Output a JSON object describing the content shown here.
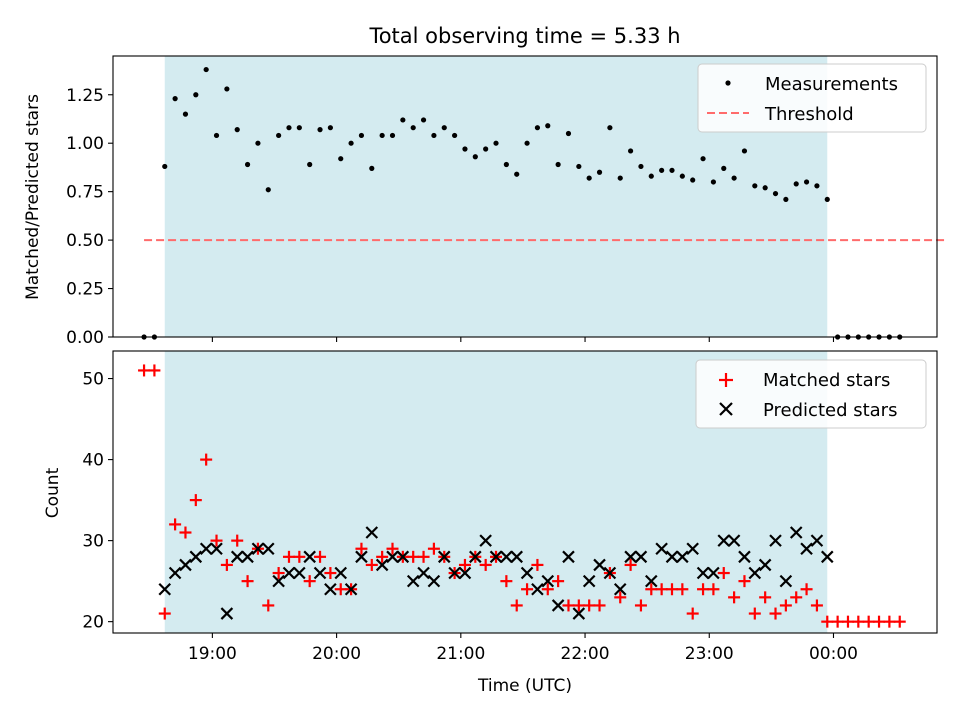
{
  "chart_data": [
    {
      "type": "scatter",
      "title": "Total observing time = 5.33 h",
      "xlabel": "",
      "ylabel": "Matched/Predicted stars",
      "xlim": [
        "18:12",
        "00:50"
      ],
      "ylim": [
        0,
        1.45
      ],
      "yticks": [
        0,
        0.25,
        0.5,
        0.75,
        1.0,
        1.25
      ],
      "ytick_labels": [
        "0.00",
        "0.25",
        "0.50",
        "0.75",
        "1.00",
        "1.25"
      ],
      "shaded_region": [
        "18:37",
        "23:57"
      ],
      "shade_color": "#d4ebf0",
      "legend_position": "top-right",
      "legend": [
        "Measurements",
        "Threshold"
      ],
      "threshold": {
        "name": "Threshold",
        "value": 0.5,
        "x_range": [
          "18:27",
          "00:55"
        ],
        "color": "#ff6b6b"
      },
      "series": [
        {
          "name": "Measurements",
          "marker": "dot",
          "color": "#000000",
          "x": [
            "18:27",
            "18:32",
            "18:37",
            "18:42",
            "18:47",
            "18:52",
            "18:57",
            "19:02",
            "19:07",
            "19:12",
            "19:17",
            "19:22",
            "19:27",
            "19:32",
            "19:37",
            "19:42",
            "19:47",
            "19:52",
            "19:57",
            "20:02",
            "20:07",
            "20:12",
            "20:17",
            "20:22",
            "20:27",
            "20:32",
            "20:37",
            "20:42",
            "20:47",
            "20:52",
            "20:57",
            "21:02",
            "21:07",
            "21:12",
            "21:17",
            "21:22",
            "21:27",
            "21:32",
            "21:37",
            "21:42",
            "21:47",
            "21:52",
            "21:57",
            "22:02",
            "22:07",
            "22:12",
            "22:17",
            "22:22",
            "22:27",
            "22:32",
            "22:37",
            "22:42",
            "22:47",
            "22:52",
            "22:57",
            "23:02",
            "23:07",
            "23:12",
            "23:17",
            "23:22",
            "23:27",
            "23:32",
            "23:37",
            "23:42",
            "23:47",
            "23:52",
            "23:57",
            "00:02",
            "00:07",
            "00:12",
            "00:17",
            "00:22",
            "00:27",
            "00:32"
          ],
          "y": [
            0.0,
            0.0,
            0.88,
            1.23,
            1.15,
            1.25,
            1.38,
            1.04,
            1.28,
            1.07,
            0.89,
            1.0,
            0.76,
            1.04,
            1.08,
            1.08,
            0.89,
            1.07,
            1.08,
            0.92,
            1.0,
            1.04,
            0.87,
            1.04,
            1.04,
            1.12,
            1.08,
            1.12,
            1.04,
            1.08,
            1.04,
            0.97,
            0.93,
            0.97,
            1.0,
            0.89,
            0.84,
            1.0,
            1.08,
            1.09,
            0.89,
            1.05,
            0.88,
            0.82,
            0.85,
            1.08,
            0.82,
            0.96,
            0.88,
            0.83,
            0.86,
            0.86,
            0.83,
            0.81,
            0.92,
            0.8,
            0.87,
            0.82,
            0.96,
            0.78,
            0.77,
            0.74,
            0.71,
            0.79,
            0.8,
            0.78,
            0.71,
            0.0,
            0.0,
            0.0,
            0.0,
            0.0,
            0.0,
            0.0
          ]
        }
      ]
    },
    {
      "type": "scatter",
      "title": "",
      "xlabel": "Time (UTC)",
      "ylabel": "Count",
      "xlim": [
        "18:12",
        "00:50"
      ],
      "ylim": [
        18.6,
        53.4
      ],
      "yticks": [
        20,
        30,
        40,
        50
      ],
      "ytick_labels": [
        "20",
        "30",
        "40",
        "50"
      ],
      "xticks": [
        "19:00",
        "20:00",
        "21:00",
        "22:00",
        "23:00",
        "00:00"
      ],
      "shaded_region": [
        "18:37",
        "23:57"
      ],
      "shade_color": "#d4ebf0",
      "legend_position": "top-right",
      "legend": [
        "Matched stars",
        "Predicted stars"
      ],
      "series": [
        {
          "name": "Matched stars",
          "marker": "plus",
          "color": "#ff0000",
          "x": [
            "18:27",
            "18:32",
            "18:37",
            "18:42",
            "18:47",
            "18:52",
            "18:57",
            "19:02",
            "19:07",
            "19:12",
            "19:17",
            "19:22",
            "19:27",
            "19:32",
            "19:37",
            "19:42",
            "19:47",
            "19:52",
            "19:57",
            "20:02",
            "20:07",
            "20:12",
            "20:17",
            "20:22",
            "20:27",
            "20:32",
            "20:37",
            "20:42",
            "20:47",
            "20:52",
            "20:57",
            "21:02",
            "21:07",
            "21:12",
            "21:17",
            "21:22",
            "21:27",
            "21:32",
            "21:37",
            "21:42",
            "21:47",
            "21:52",
            "21:57",
            "22:02",
            "22:07",
            "22:12",
            "22:17",
            "22:22",
            "22:27",
            "22:32",
            "22:37",
            "22:42",
            "22:47",
            "22:52",
            "22:57",
            "23:02",
            "23:07",
            "23:12",
            "23:17",
            "23:22",
            "23:27",
            "23:32",
            "23:37",
            "23:42",
            "23:47",
            "23:52",
            "23:57",
            "00:02",
            "00:07",
            "00:12",
            "00:17",
            "00:22",
            "00:27",
            "00:32"
          ],
          "y": [
            51,
            51,
            21,
            32,
            31,
            35,
            40,
            30,
            27,
            30,
            25,
            29,
            22,
            26,
            28,
            28,
            25,
            28,
            26,
            24,
            24,
            29,
            27,
            28,
            29,
            28,
            28,
            28,
            29,
            28,
            26,
            27,
            28,
            27,
            28,
            25,
            22,
            24,
            27,
            24,
            25,
            22,
            22,
            22,
            22,
            26,
            23,
            27,
            22,
            24,
            24,
            24,
            24,
            21,
            24,
            24,
            26,
            23,
            25,
            21,
            23,
            21,
            22,
            23,
            24,
            22,
            20,
            20,
            20,
            20,
            20,
            20,
            20,
            20
          ]
        },
        {
          "name": "Predicted stars",
          "marker": "x",
          "color": "#000000",
          "x": [
            "18:37",
            "18:42",
            "18:47",
            "18:52",
            "18:57",
            "19:02",
            "19:07",
            "19:12",
            "19:17",
            "19:22",
            "19:27",
            "19:32",
            "19:37",
            "19:42",
            "19:47",
            "19:52",
            "19:57",
            "20:02",
            "20:07",
            "20:12",
            "20:17",
            "20:22",
            "20:27",
            "20:32",
            "20:37",
            "20:42",
            "20:47",
            "20:52",
            "20:57",
            "21:02",
            "21:07",
            "21:12",
            "21:17",
            "21:22",
            "21:27",
            "21:32",
            "21:37",
            "21:42",
            "21:47",
            "21:52",
            "21:57",
            "22:02",
            "22:07",
            "22:12",
            "22:17",
            "22:22",
            "22:27",
            "22:32",
            "22:37",
            "22:42",
            "22:47",
            "22:52",
            "22:57",
            "23:02",
            "23:07",
            "23:12",
            "23:17",
            "23:22",
            "23:27",
            "23:32",
            "23:37",
            "23:42",
            "23:47",
            "23:52",
            "23:57"
          ],
          "y": [
            24,
            26,
            27,
            28,
            29,
            29,
            21,
            28,
            28,
            29,
            29,
            25,
            26,
            26,
            28,
            26,
            24,
            26,
            24,
            28,
            31,
            27,
            28,
            28,
            25,
            26,
            25,
            28,
            26,
            26,
            28,
            30,
            28,
            28,
            28,
            26,
            24,
            25,
            22,
            28,
            21,
            25,
            27,
            26,
            24,
            28,
            28,
            25,
            29,
            28,
            28,
            29,
            26,
            26,
            30,
            30,
            28,
            26,
            27,
            30,
            25,
            31,
            29,
            30,
            28
          ]
        }
      ]
    }
  ]
}
